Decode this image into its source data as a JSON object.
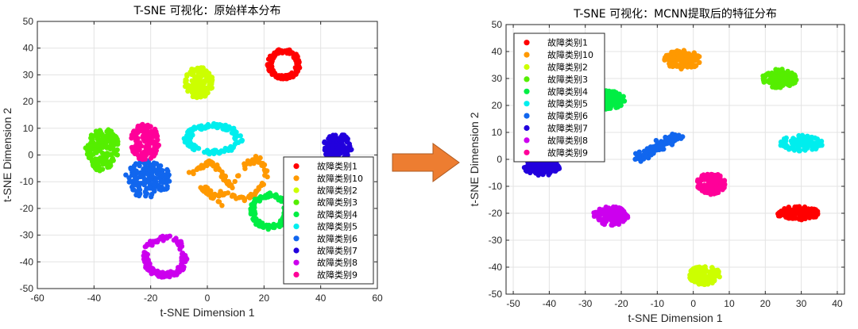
{
  "arrow_color": "#ed7d31",
  "chart_data": [
    {
      "type": "scatter",
      "title": "T-SNE 可视化：原始样本分布",
      "xlabel": "t-SNE Dimension 1",
      "ylabel": "t-SNE Dimension 2",
      "xlim": [
        -60,
        60
      ],
      "ylim": [
        -50,
        50
      ],
      "xticks": [
        -60,
        -40,
        -20,
        0,
        20,
        40,
        60
      ],
      "yticks": [
        -50,
        -40,
        -30,
        -20,
        -10,
        0,
        10,
        20,
        30,
        40,
        50
      ],
      "grid": true,
      "legend_position": "bottom-right",
      "series": [
        {
          "name": "故障类别1",
          "color": "#ff0000",
          "shape": "ring",
          "cx": 27,
          "cy": 34,
          "rx": 5,
          "ry": 5,
          "n": 140
        },
        {
          "name": "故障类别10",
          "color": "#ff9900",
          "shape": "wave",
          "points": [
            [
              -6,
              -7
            ],
            [
              -3,
              -5
            ],
            [
              1,
              -3
            ],
            [
              4,
              -5
            ],
            [
              6,
              -9
            ],
            [
              8,
              -12
            ],
            [
              11,
              -8
            ],
            [
              14,
              -3
            ],
            [
              18,
              -1
            ],
            [
              20,
              -4
            ],
            [
              21,
              -8
            ],
            [
              18,
              -13
            ],
            [
              15,
              -16
            ],
            [
              10,
              -16
            ],
            [
              6,
              -14
            ],
            [
              3,
              -15
            ],
            [
              -1,
              -12
            ],
            [
              -2,
              -14
            ],
            [
              5,
              -18
            ]
          ],
          "n": 150
        },
        {
          "name": "故障类别2",
          "color": "#ccff00",
          "shape": "blob",
          "cx": -3,
          "cy": 27,
          "rx": 5,
          "ry": 6,
          "n": 120
        },
        {
          "name": "故障类别3",
          "color": "#55ee00",
          "shape": "blob",
          "cx": -37,
          "cy": 2,
          "rx": 6,
          "ry": 8,
          "n": 150
        },
        {
          "name": "故障类别4",
          "color": "#00ee44",
          "shape": "ring",
          "cx": 22,
          "cy": -21,
          "rx": 6,
          "ry": 6,
          "n": 130
        },
        {
          "name": "故障类别5",
          "color": "#00eeee",
          "shape": "ring",
          "cx": 2,
          "cy": 6,
          "rx": 9,
          "ry": 5,
          "n": 130
        },
        {
          "name": "故障类别6",
          "color": "#1166ee",
          "shape": "blob",
          "cx": -21,
          "cy": -9,
          "rx": 8,
          "ry": 7,
          "n": 160
        },
        {
          "name": "故障类别7",
          "color": "#2200dd",
          "shape": "blob",
          "cx": 46,
          "cy": 3,
          "rx": 5,
          "ry": 5,
          "n": 110
        },
        {
          "name": "故障类别8",
          "color": "#cc00ee",
          "shape": "ring",
          "cx": -15,
          "cy": -38,
          "rx": 7,
          "ry": 7,
          "n": 140
        },
        {
          "name": "故障类别9",
          "color": "#ff0099",
          "shape": "blob",
          "cx": -22,
          "cy": 5,
          "rx": 5,
          "ry": 7,
          "n": 140
        }
      ]
    },
    {
      "type": "scatter",
      "title": "T-SNE 可视化：MCNN提取后的特征分布",
      "xlabel": "t-SNE Dimension 1",
      "ylabel": "t-SNE Dimension 2",
      "xlim": [
        -52,
        42
      ],
      "ylim": [
        -50,
        50
      ],
      "xticks": [
        -50,
        -40,
        -30,
        -20,
        -10,
        0,
        10,
        20,
        30,
        40
      ],
      "yticks": [
        -50,
        -40,
        -30,
        -20,
        -10,
        0,
        10,
        20,
        30,
        40,
        50
      ],
      "grid": true,
      "legend_position": "top-left",
      "series": [
        {
          "name": "故障类别1",
          "color": "#ff0000",
          "shape": "blob",
          "cx": 29,
          "cy": -20,
          "rx": 6,
          "ry": 2.5,
          "n": 130
        },
        {
          "name": "故障类别10",
          "color": "#ff9900",
          "shape": "blob",
          "cx": -3,
          "cy": 37,
          "rx": 5,
          "ry": 3.5,
          "n": 130
        },
        {
          "name": "故障类别2",
          "color": "#ccff00",
          "shape": "blob",
          "cx": 3,
          "cy": -43,
          "rx": 4.5,
          "ry": 3.5,
          "n": 130
        },
        {
          "name": "故障类别3",
          "color": "#55ee00",
          "shape": "blob",
          "cx": 24,
          "cy": 30,
          "rx": 5,
          "ry": 3.5,
          "n": 130
        },
        {
          "name": "故障类别4",
          "color": "#00ee44",
          "shape": "blob",
          "cx": -24,
          "cy": 22,
          "rx": 5,
          "ry": 3.5,
          "n": 120
        },
        {
          "name": "故障类别5",
          "color": "#00eeee",
          "shape": "blob",
          "cx": 30,
          "cy": 6,
          "rx": 6,
          "ry": 3,
          "n": 130
        },
        {
          "name": "故障类别6",
          "color": "#1166ee",
          "shape": "band",
          "x0": -16,
          "y0": 0,
          "x1": -4,
          "y1": 9,
          "w": 1.6,
          "n": 110
        },
        {
          "name": "故障类别7",
          "color": "#2200dd",
          "shape": "blob",
          "cx": -42,
          "cy": -3,
          "rx": 5,
          "ry": 3,
          "n": 120
        },
        {
          "name": "故障类别8",
          "color": "#cc00ee",
          "shape": "blob",
          "cx": -23,
          "cy": -21,
          "rx": 5,
          "ry": 3.5,
          "n": 120
        },
        {
          "name": "故障类别9",
          "color": "#ff0099",
          "shape": "blob",
          "cx": 5,
          "cy": -9,
          "rx": 4,
          "ry": 4,
          "n": 120
        }
      ]
    }
  ]
}
